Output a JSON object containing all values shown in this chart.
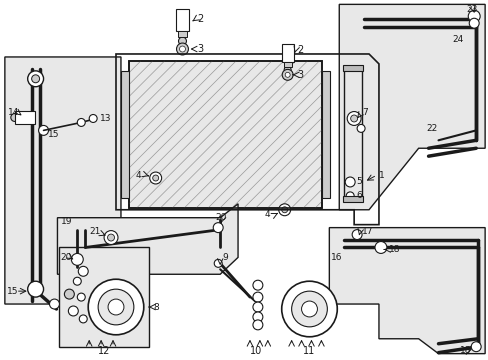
{
  "bg_color": "#ffffff",
  "line_color": "#1a1a1a",
  "shaded_color": "#e8e8e8",
  "figsize": [
    4.89,
    3.6
  ],
  "dpi": 100
}
